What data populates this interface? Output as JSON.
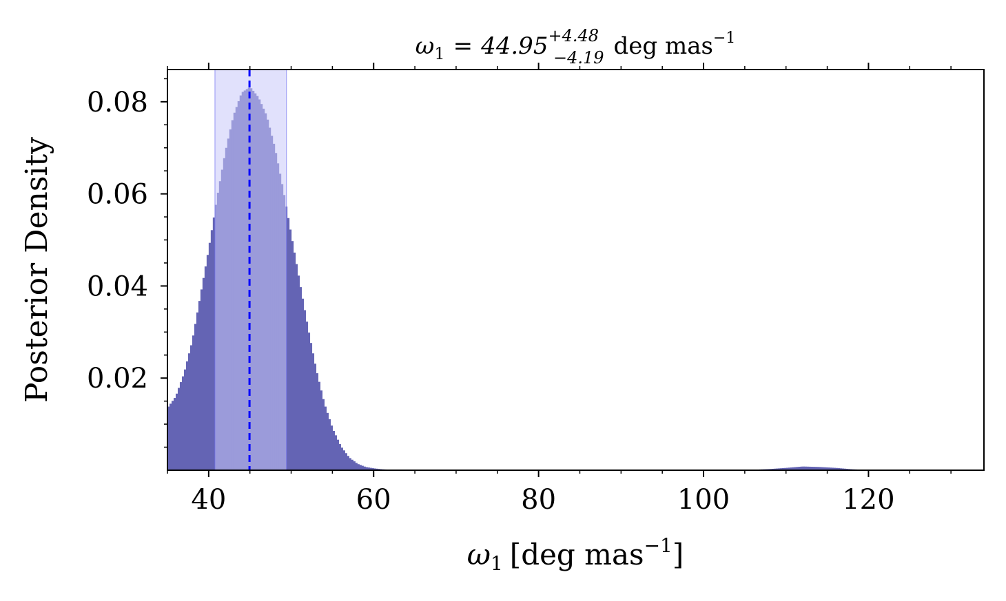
{
  "chart_data": {
    "type": "bar",
    "title": "ω₁ = 44.95 +4.48 −4.19 deg mas⁻¹",
    "title_parts": {
      "lhs": "ω",
      "lhs_sub": "1",
      "eq": "=",
      "value": "44.95",
      "upper": "+4.48",
      "lower": "−4.19",
      "unit": "deg mas",
      "unit_exp": "−1"
    },
    "xlabel": "ω₁ [deg mas⁻¹]",
    "xlabel_parts": {
      "sym": "ω",
      "sub": "1",
      "open": "[",
      "unit": "deg mas",
      "exp": "−1",
      "close": "]"
    },
    "ylabel": "Posterior Density",
    "xlim": [
      35,
      134
    ],
    "ylim": [
      0,
      0.087
    ],
    "x_ticks": [
      40,
      60,
      80,
      100,
      120
    ],
    "x_tick_labels": [
      "40",
      "60",
      "80",
      "100",
      "120"
    ],
    "y_ticks": [
      0.02,
      0.04,
      0.06,
      0.08
    ],
    "y_tick_labels": [
      "0.02",
      "0.04",
      "0.06",
      "0.08"
    ],
    "grid": false,
    "median": 44.95,
    "credible_interval": [
      40.76,
      49.43
    ],
    "histogram_color": "#6464b4",
    "band_color": "#c8c8fa",
    "median_line_color": "#0000ff",
    "x": [
      35,
      36,
      37,
      38,
      39,
      40,
      41,
      42,
      43,
      44,
      45,
      46,
      47,
      48,
      49,
      50,
      51,
      52,
      53,
      54,
      55,
      56,
      57,
      58,
      59,
      60,
      61,
      62,
      63,
      64,
      65,
      100,
      104,
      106,
      108,
      110,
      112,
      114,
      116,
      118,
      120,
      121
    ],
    "density": [
      0.0135,
      0.016,
      0.021,
      0.028,
      0.038,
      0.048,
      0.059,
      0.069,
      0.077,
      0.082,
      0.0832,
      0.081,
      0.077,
      0.07,
      0.061,
      0.051,
      0.041,
      0.031,
      0.022,
      0.0145,
      0.009,
      0.0052,
      0.0028,
      0.0014,
      0.0007,
      0.0004,
      0.0002,
      0.0001,
      5e-05,
      2e-05,
      0.0,
      0.0,
      0.0,
      0.0001,
      0.00025,
      0.0005,
      0.0008,
      0.0007,
      0.0005,
      0.0002,
      5e-05,
      0.0
    ]
  }
}
